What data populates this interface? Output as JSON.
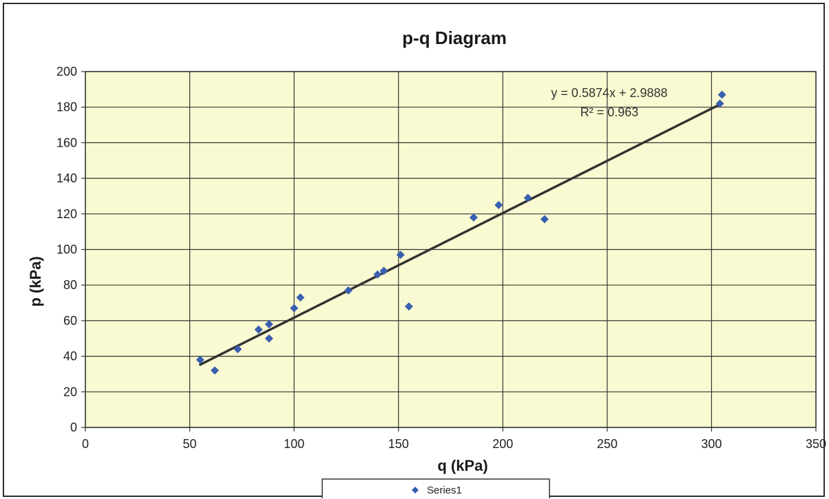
{
  "chart_data": {
    "type": "scatter",
    "title": "p-q Diagram",
    "xlabel": "q (kPa)",
    "ylabel": "p (kPa)",
    "xlim": [
      0,
      350
    ],
    "ylim": [
      0,
      200
    ],
    "xticks": [
      0,
      50,
      100,
      150,
      200,
      250,
      300,
      350
    ],
    "yticks": [
      0,
      20,
      40,
      60,
      80,
      100,
      120,
      140,
      160,
      180,
      200
    ],
    "grid": true,
    "legend": {
      "position": "bottom",
      "entries": [
        "Series1"
      ]
    },
    "series": [
      {
        "name": "Series1",
        "marker": "diamond",
        "color": "#3a5fb0",
        "points": [
          [
            55,
            38
          ],
          [
            62,
            32
          ],
          [
            73,
            44
          ],
          [
            83,
            55
          ],
          [
            88,
            58
          ],
          [
            88,
            50
          ],
          [
            100,
            67
          ],
          [
            103,
            73
          ],
          [
            126,
            77
          ],
          [
            140,
            86
          ],
          [
            143,
            88
          ],
          [
            151,
            97
          ],
          [
            155,
            68
          ],
          [
            186,
            118
          ],
          [
            198,
            125
          ],
          [
            212,
            129
          ],
          [
            220,
            117
          ],
          [
            304,
            182
          ],
          [
            305,
            187
          ]
        ]
      }
    ],
    "trendline": {
      "type": "linear",
      "slope": 0.5874,
      "intercept": 2.9888,
      "x_range": [
        55,
        305
      ],
      "color": "#333333",
      "equation_text": "y = 0.5874x + 2.9888",
      "r2_text": "R² = 0.963"
    },
    "plot_background": "#fafad2"
  }
}
